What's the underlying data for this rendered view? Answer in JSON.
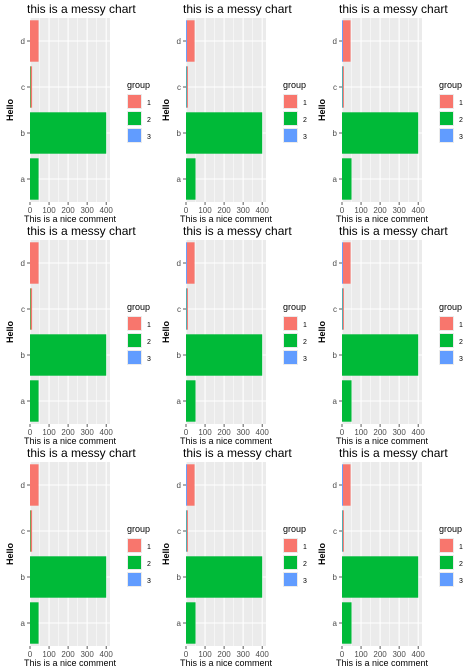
{
  "colors": {
    "panel_bg": "#EBEBEB",
    "gridline": "#FFFFFF",
    "group_1": "#F8766D",
    "group_2": "#00BA38",
    "group_3": "#619CFF",
    "axis_text": "#4D4D4D"
  },
  "chart_data": [
    {
      "type": "bar",
      "orientation": "horizontal",
      "stacked": true,
      "title": "this is a messy chart",
      "xlabel": "This is a nice comment",
      "ylabel": "Hello",
      "categories": [
        "a",
        "b",
        "c",
        "d"
      ],
      "xlim": [
        0,
        420
      ],
      "xticks": [
        0,
        100,
        200,
        300,
        400
      ],
      "grid": true,
      "legend": {
        "title": "group",
        "placement": "right",
        "entries": [
          "1",
          "2",
          "3"
        ]
      },
      "series": [
        {
          "name": "1",
          "values": [
            0,
            0,
            8,
            45
          ]
        },
        {
          "name": "2",
          "values": [
            45,
            400,
            3,
            0
          ]
        },
        {
          "name": "3",
          "values": [
            0,
            0,
            0,
            0
          ]
        }
      ]
    },
    {
      "type": "bar",
      "orientation": "horizontal",
      "stacked": true,
      "title": "this is a messy chart",
      "xlabel": "This is a nice comment",
      "ylabel": "Hello",
      "categories": [
        "a",
        "b",
        "c",
        "d"
      ],
      "xlim": [
        0,
        420
      ],
      "xticks": [
        0,
        100,
        200,
        300,
        400
      ],
      "grid": true,
      "legend": {
        "title": "group",
        "placement": "right",
        "entries": [
          "1",
          "2",
          "3"
        ]
      },
      "series": [
        {
          "name": "1",
          "values": [
            0,
            0,
            5,
            40
          ]
        },
        {
          "name": "2",
          "values": [
            50,
            400,
            2,
            0
          ]
        },
        {
          "name": "3",
          "values": [
            0,
            0,
            3,
            5
          ]
        }
      ]
    },
    {
      "type": "bar",
      "orientation": "horizontal",
      "stacked": true,
      "title": "this is a messy chart",
      "xlabel": "This is a nice comment",
      "ylabel": "Hello",
      "categories": [
        "a",
        "b",
        "c",
        "d"
      ],
      "xlim": [
        0,
        420
      ],
      "xticks": [
        0,
        100,
        200,
        300,
        400
      ],
      "grid": true,
      "legend": {
        "title": "group",
        "placement": "right",
        "entries": [
          "1",
          "2",
          "3"
        ]
      },
      "series": [
        {
          "name": "1",
          "values": [
            0,
            0,
            5,
            40
          ]
        },
        {
          "name": "2",
          "values": [
            50,
            400,
            2,
            0
          ]
        },
        {
          "name": "3",
          "values": [
            0,
            0,
            3,
            5
          ]
        }
      ]
    },
    {
      "type": "bar",
      "orientation": "horizontal",
      "stacked": true,
      "title": "this is a messy chart",
      "xlabel": "This is a nice comment",
      "ylabel": "Hello",
      "categories": [
        "a",
        "b",
        "c",
        "d"
      ],
      "xlim": [
        0,
        420
      ],
      "xticks": [
        0,
        100,
        200,
        300,
        400
      ],
      "grid": true,
      "legend": {
        "title": "group",
        "placement": "right",
        "entries": [
          "1",
          "2",
          "3"
        ]
      },
      "series": [
        {
          "name": "1",
          "values": [
            0,
            0,
            8,
            45
          ]
        },
        {
          "name": "2",
          "values": [
            45,
            400,
            3,
            0
          ]
        },
        {
          "name": "3",
          "values": [
            0,
            0,
            0,
            0
          ]
        }
      ]
    },
    {
      "type": "bar",
      "orientation": "horizontal",
      "stacked": true,
      "title": "this is a messy chart",
      "xlabel": "This is a nice comment",
      "ylabel": "Hello",
      "categories": [
        "a",
        "b",
        "c",
        "d"
      ],
      "xlim": [
        0,
        420
      ],
      "xticks": [
        0,
        100,
        200,
        300,
        400
      ],
      "grid": true,
      "legend": {
        "title": "group",
        "placement": "right",
        "entries": [
          "1",
          "2",
          "3"
        ]
      },
      "series": [
        {
          "name": "1",
          "values": [
            0,
            0,
            5,
            40
          ]
        },
        {
          "name": "2",
          "values": [
            50,
            400,
            2,
            0
          ]
        },
        {
          "name": "3",
          "values": [
            0,
            0,
            3,
            5
          ]
        }
      ]
    },
    {
      "type": "bar",
      "orientation": "horizontal",
      "stacked": true,
      "title": "this is a messy chart",
      "xlabel": "This is a nice comment",
      "ylabel": "Hello",
      "categories": [
        "a",
        "b",
        "c",
        "d"
      ],
      "xlim": [
        0,
        420
      ],
      "xticks": [
        0,
        100,
        200,
        300,
        400
      ],
      "grid": true,
      "legend": {
        "title": "group",
        "placement": "right",
        "entries": [
          "1",
          "2",
          "3"
        ]
      },
      "series": [
        {
          "name": "1",
          "values": [
            0,
            0,
            5,
            40
          ]
        },
        {
          "name": "2",
          "values": [
            50,
            400,
            2,
            0
          ]
        },
        {
          "name": "3",
          "values": [
            0,
            0,
            3,
            5
          ]
        }
      ]
    },
    {
      "type": "bar",
      "orientation": "horizontal",
      "stacked": true,
      "title": "this is a messy chart",
      "xlabel": "This is a nice comment",
      "ylabel": "Hello",
      "categories": [
        "a",
        "b",
        "c",
        "d"
      ],
      "xlim": [
        0,
        420
      ],
      "xticks": [
        0,
        100,
        200,
        300,
        400
      ],
      "grid": true,
      "legend": {
        "title": "group",
        "placement": "right",
        "entries": [
          "1",
          "2",
          "3"
        ]
      },
      "series": [
        {
          "name": "1",
          "values": [
            0,
            0,
            8,
            45
          ]
        },
        {
          "name": "2",
          "values": [
            45,
            400,
            3,
            0
          ]
        },
        {
          "name": "3",
          "values": [
            0,
            0,
            0,
            0
          ]
        }
      ]
    },
    {
      "type": "bar",
      "orientation": "horizontal",
      "stacked": true,
      "title": "this is a messy chart",
      "xlabel": "This is a nice comment",
      "ylabel": "Hello",
      "categories": [
        "a",
        "b",
        "c",
        "d"
      ],
      "xlim": [
        0,
        420
      ],
      "xticks": [
        0,
        100,
        200,
        300,
        400
      ],
      "grid": true,
      "legend": {
        "title": "group",
        "placement": "right",
        "entries": [
          "1",
          "2",
          "3"
        ]
      },
      "series": [
        {
          "name": "1",
          "values": [
            0,
            0,
            5,
            40
          ]
        },
        {
          "name": "2",
          "values": [
            50,
            400,
            2,
            0
          ]
        },
        {
          "name": "3",
          "values": [
            0,
            0,
            3,
            5
          ]
        }
      ]
    },
    {
      "type": "bar",
      "orientation": "horizontal",
      "stacked": true,
      "title": "this is a messy chart",
      "xlabel": "This is a nice comment",
      "ylabel": "Hello",
      "categories": [
        "a",
        "b",
        "c",
        "d"
      ],
      "xlim": [
        0,
        420
      ],
      "xticks": [
        0,
        100,
        200,
        300,
        400
      ],
      "grid": true,
      "legend": {
        "title": "group",
        "placement": "right",
        "entries": [
          "1",
          "2",
          "3"
        ]
      },
      "series": [
        {
          "name": "1",
          "values": [
            0,
            0,
            5,
            40
          ]
        },
        {
          "name": "2",
          "values": [
            50,
            400,
            2,
            0
          ]
        },
        {
          "name": "3",
          "values": [
            0,
            0,
            3,
            5
          ]
        }
      ]
    }
  ]
}
